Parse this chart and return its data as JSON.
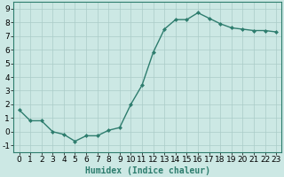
{
  "x": [
    0,
    1,
    2,
    3,
    4,
    5,
    6,
    7,
    8,
    9,
    10,
    11,
    12,
    13,
    14,
    15,
    16,
    17,
    18,
    19,
    20,
    21,
    22,
    23
  ],
  "y": [
    1.6,
    0.8,
    0.8,
    0.0,
    -0.2,
    -0.7,
    -0.3,
    -0.3,
    0.1,
    0.3,
    2.0,
    3.4,
    5.8,
    7.5,
    8.2,
    8.2,
    8.7,
    8.3,
    7.9,
    7.6,
    7.5,
    7.4,
    7.4,
    7.3
  ],
  "line_color": "#2e7d6e",
  "marker": "D",
  "marker_size": 2.0,
  "bg_color": "#cce8e4",
  "grid_color": "#aaccc8",
  "xlabel": "Humidex (Indice chaleur)",
  "xlim": [
    -0.5,
    23.5
  ],
  "ylim": [
    -1.5,
    9.5
  ],
  "yticks": [
    -1,
    0,
    1,
    2,
    3,
    4,
    5,
    6,
    7,
    8,
    9
  ],
  "xticks": [
    0,
    1,
    2,
    3,
    4,
    5,
    6,
    7,
    8,
    9,
    10,
    11,
    12,
    13,
    14,
    15,
    16,
    17,
    18,
    19,
    20,
    21,
    22,
    23
  ],
  "xlabel_fontsize": 7,
  "tick_fontsize": 6.5,
  "line_width": 1.0
}
